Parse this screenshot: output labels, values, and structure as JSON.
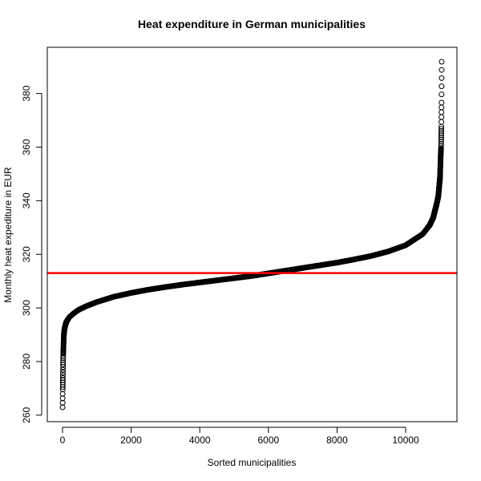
{
  "chart_data": {
    "type": "scatter",
    "title": "Heat expenditure in German municipalities",
    "xlabel": "Sorted municipalities",
    "ylabel": "Monthly heat expediture in EUR",
    "xlim": [
      0,
      11050
    ],
    "ylim": [
      262.95,
      391.85
    ],
    "x_ticks": [
      0,
      2000,
      4000,
      6000,
      8000,
      10000
    ],
    "y_ticks": [
      260,
      280,
      300,
      320,
      340,
      360,
      380
    ],
    "grid": false,
    "legend": "none",
    "marker": "open circle",
    "n_points": 11050,
    "series": [
      {
        "x": [
          1,
          5,
          10,
          15,
          20,
          25,
          30,
          35,
          40,
          45,
          50,
          60,
          70,
          80,
          90,
          100,
          150,
          200,
          300,
          400,
          500,
          700,
          1000,
          1500,
          2000,
          2500,
          3000,
          3500,
          4000,
          4500,
          5000,
          5500,
          6000,
          6500,
          7000,
          7500,
          8000,
          8500,
          9000,
          9500,
          10000,
          10500,
          10700,
          10800,
          10900,
          10950,
          11000,
          11010,
          11020,
          11030,
          11035,
          11040,
          11045,
          11050
        ],
        "values": [
          262.95,
          269.6,
          273.9,
          278.9,
          282.9,
          284.6,
          286.7,
          288.4,
          290.0,
          290.7,
          291.4,
          292.2,
          292.8,
          293.4,
          293.9,
          294.4,
          295.6,
          296.6,
          297.7,
          298.7,
          299.5,
          300.7,
          302.2,
          304.2,
          305.6,
          306.8,
          307.8,
          308.7,
          309.5,
          310.3,
          311.1,
          311.9,
          312.9,
          313.9,
          314.9,
          315.9,
          316.9,
          318.1,
          319.4,
          321.1,
          323.4,
          327.6,
          330.9,
          333.6,
          338.6,
          341.6,
          348.6,
          352.6,
          356.6,
          359.6,
          363.6,
          367.6,
          376.6,
          391.85
        ]
      }
    ],
    "reference_line": {
      "y": 313.0,
      "color": "#ff0000"
    },
    "point_color": "#000000"
  }
}
